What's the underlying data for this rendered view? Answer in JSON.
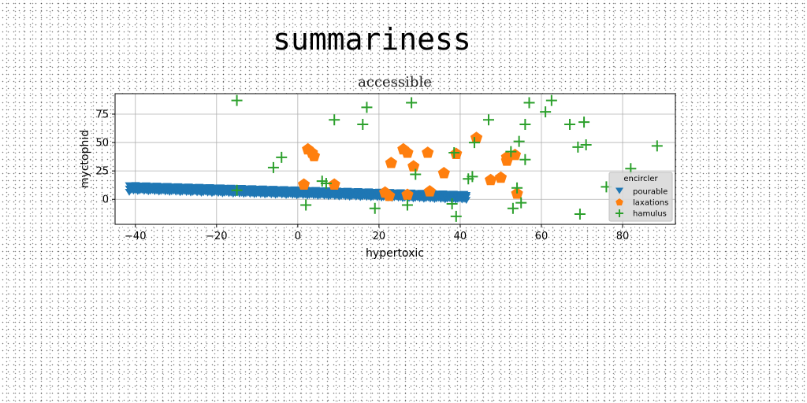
{
  "chart_data": {
    "type": "scatter",
    "suptitle": "summariness",
    "title": "accessible",
    "xlabel": "hypertoxic",
    "ylabel": "myctophid",
    "xlim": [
      -45,
      93
    ],
    "ylim": [
      -22,
      93
    ],
    "xticks": [
      -40,
      -20,
      0,
      20,
      40,
      60,
      80
    ],
    "yticks": [
      0,
      25,
      50,
      75
    ],
    "grid": true,
    "legend": {
      "title": "encircler",
      "placement": "lower-right"
    },
    "colors": {
      "pourable": "#1f77b4",
      "laxations": "#ff7f0e",
      "hamulus": "#2ca02c"
    },
    "series": [
      {
        "name": "pourable",
        "marker": "triangle-down",
        "line": {
          "x_start": -41.5,
          "x_end": 41.5,
          "y_start": 10,
          "y_end": 2,
          "spread": 4
        }
      },
      {
        "name": "laxations",
        "marker": "pentagon",
        "points": [
          [
            1.5,
            13
          ],
          [
            2.5,
            44
          ],
          [
            3.5,
            41
          ],
          [
            4,
            38
          ],
          [
            9,
            13
          ],
          [
            21.5,
            6
          ],
          [
            22.5,
            3
          ],
          [
            23,
            32
          ],
          [
            26,
            44
          ],
          [
            27,
            41
          ],
          [
            27,
            4
          ],
          [
            28.5,
            29
          ],
          [
            32,
            41
          ],
          [
            32.5,
            7
          ],
          [
            36,
            23
          ],
          [
            39,
            40
          ],
          [
            44,
            54
          ],
          [
            47.5,
            17
          ],
          [
            50,
            19
          ],
          [
            51.5,
            34
          ],
          [
            51.5,
            37
          ],
          [
            53.5,
            39
          ],
          [
            54,
            5
          ]
        ]
      },
      {
        "name": "hamulus",
        "marker": "plus",
        "points": [
          [
            -15,
            87
          ],
          [
            -15,
            8
          ],
          [
            -6,
            28
          ],
          [
            -4,
            37
          ],
          [
            2,
            -5
          ],
          [
            6,
            16
          ],
          [
            7,
            14
          ],
          [
            9,
            70
          ],
          [
            16,
            66
          ],
          [
            17,
            81
          ],
          [
            19,
            -8
          ],
          [
            27,
            -5
          ],
          [
            28,
            85
          ],
          [
            29,
            22
          ],
          [
            38,
            -4
          ],
          [
            38.5,
            41
          ],
          [
            39,
            -15
          ],
          [
            42,
            18
          ],
          [
            43,
            20
          ],
          [
            43.5,
            50
          ],
          [
            47,
            70
          ],
          [
            52.5,
            42
          ],
          [
            53,
            -8
          ],
          [
            54,
            10
          ],
          [
            54.5,
            51
          ],
          [
            55,
            -3
          ],
          [
            56,
            35
          ],
          [
            56,
            66
          ],
          [
            57,
            85
          ],
          [
            61,
            77
          ],
          [
            62.5,
            87
          ],
          [
            67,
            66
          ],
          [
            69,
            46
          ],
          [
            69.5,
            -13
          ],
          [
            70.5,
            68
          ],
          [
            71,
            48
          ],
          [
            76,
            11
          ],
          [
            82,
            27
          ],
          [
            88.5,
            47
          ]
        ]
      }
    ]
  }
}
